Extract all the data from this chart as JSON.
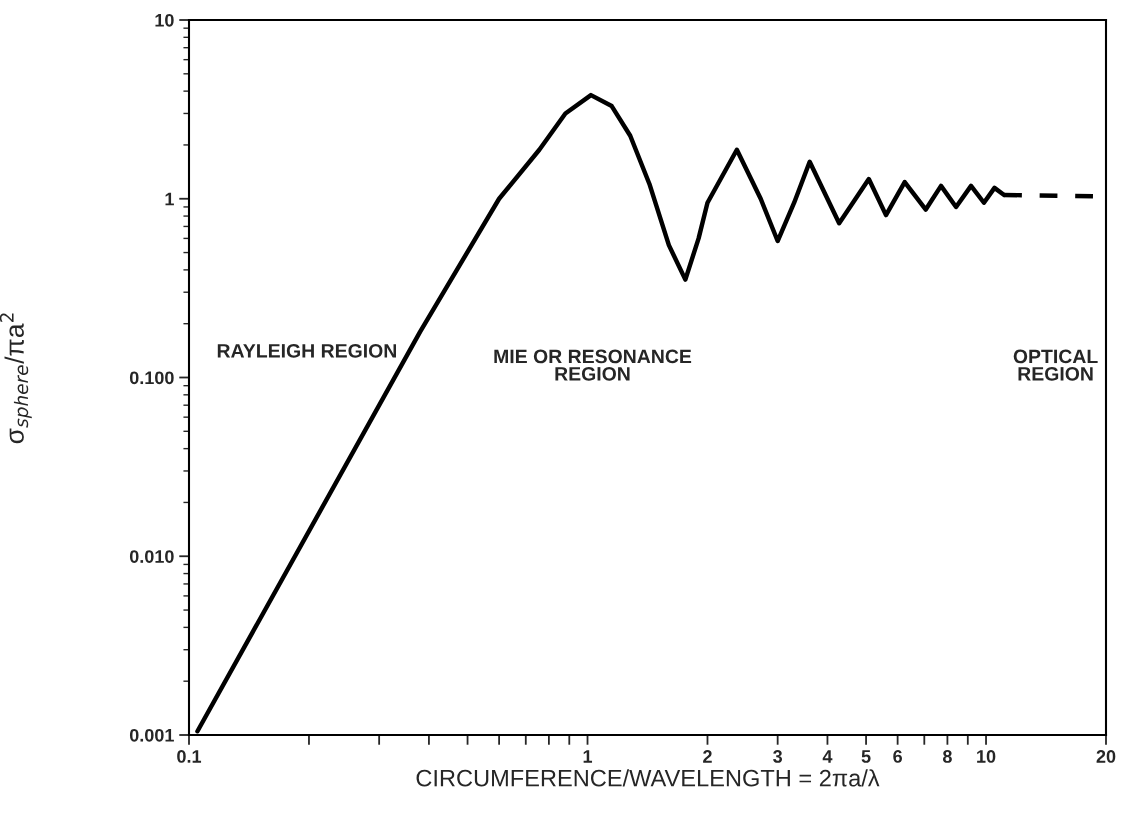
{
  "chart_data": {
    "type": "line",
    "xlabel": "CIRCUMFERENCE/WAVELENGTH = 2πa/λ",
    "ylabel": "σ$_{sphere}$/πa$^{2}$",
    "log": "xy",
    "grid": false,
    "legend": false,
    "xlim": [
      0.1,
      20
    ],
    "ylim": [
      0.001,
      10
    ],
    "xticks": [
      0.1,
      {
        "value": 0.2,
        "label": null
      },
      {
        "value": 0.3,
        "label": null
      },
      {
        "value": 0.4,
        "label": null
      },
      {
        "value": 0.5,
        "label": null
      },
      {
        "value": 0.6,
        "label": null
      },
      {
        "value": 0.7,
        "label": null
      },
      {
        "value": 0.8,
        "label": null
      },
      {
        "value": 0.9,
        "label": null
      },
      1,
      2,
      3,
      4,
      5,
      6,
      {
        "value": 7,
        "label": null
      },
      8,
      {
        "value": 9,
        "label": null
      },
      10,
      20
    ],
    "yticks": [
      {
        "value": 0.001,
        "label": "0.001"
      },
      {
        "value": 0.01,
        "label": "0.010"
      },
      {
        "value": 0.1,
        "label": "0.100"
      },
      1,
      10
    ],
    "annotations": [
      "RAYLEIGH REGION",
      "MIE OR RESONANCE\nREGION",
      "OPTICAL\nREGION"
    ],
    "series": [
      {
        "color": "#000000",
        "line_style": "solid",
        "x": [
          0.105,
          0.38,
          0.6,
          0.757,
          0.88,
          1.02,
          1.15,
          1.28,
          1.43,
          1.6,
          1.76,
          1.9,
          2.0,
          2.37,
          2.72,
          3.0,
          3.3,
          3.61,
          4.28,
          5.08,
          5.61,
          6.25,
          7.06,
          7.71,
          8.41,
          9.17,
          9.88,
          10.5,
          11.1
        ],
        "values": [
          0.00105,
          0.18,
          1.0,
          1.88,
          3.0,
          3.8,
          3.3,
          2.25,
          1.21,
          0.55,
          0.353,
          0.6,
          0.95,
          1.88,
          1.0,
          0.58,
          0.95,
          1.61,
          0.73,
          1.29,
          0.81,
          1.24,
          0.87,
          1.18,
          0.9,
          1.18,
          0.95,
          1.15,
          1.05
        ]
      },
      {
        "color": "#000000",
        "line_style": "dashed",
        "x": [
          11.1,
          20
        ],
        "values": [
          1.05,
          1.03
        ]
      }
    ]
  }
}
